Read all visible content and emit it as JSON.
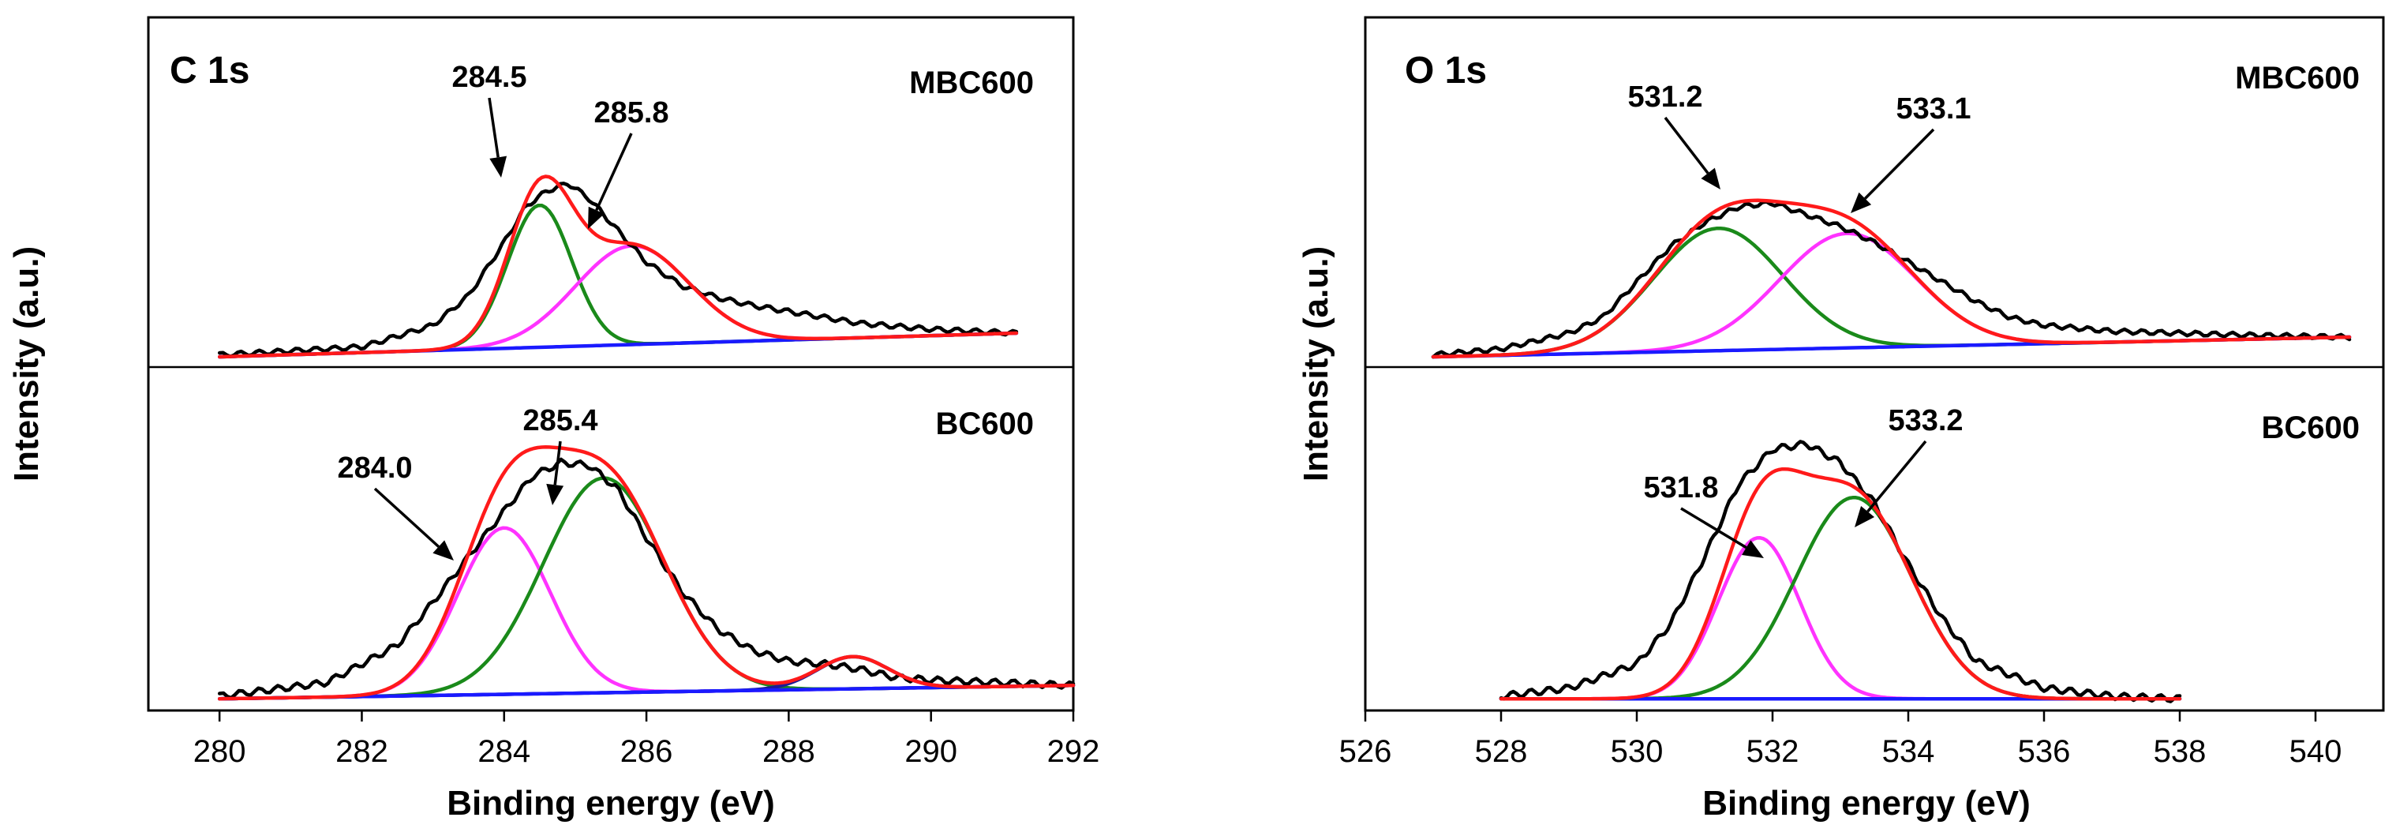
{
  "chart_data": [
    {
      "type": "line",
      "title": "C 1s",
      "xlabel": "Binding energy (eV)",
      "ylabel": "Intensity (a.u.)",
      "xlim": [
        279,
        292
      ],
      "xticks": [
        280,
        282,
        284,
        286,
        288,
        290,
        292
      ],
      "stacked_panels": [
        {
          "sample": "MBC600",
          "peaks": [
            {
              "label": "284.5",
              "center": 284.5,
              "height": 0.72,
              "width": 0.45
            },
            {
              "label": "285.8",
              "center": 285.8,
              "height": 0.5,
              "width": 0.8
            }
          ],
          "baseline": [
            0.02,
            0.14
          ],
          "raw": {
            "x": [
              280,
              282,
              283,
              283.5,
              284,
              284.3,
              284.6,
              284.9,
              285.2,
              285.5,
              286,
              286.5,
              287,
              287.5,
              288,
              288.5,
              289,
              290,
              291.2
            ],
            "y": [
              0.03,
              0.07,
              0.18,
              0.33,
              0.6,
              0.78,
              0.86,
              0.9,
              0.82,
              0.7,
              0.5,
              0.38,
              0.32,
              0.28,
              0.25,
              0.22,
              0.19,
              0.16,
              0.14
            ]
          },
          "fit_color": "#ff1a1a",
          "raw_color": "#000000",
          "colors": [
            "#1a8a1a",
            "#ff33ff"
          ],
          "baseline_color": "#1a1aff",
          "x_range": [
            280,
            291.2
          ]
        },
        {
          "sample": "BC600",
          "peaks": [
            {
              "label": "284.0",
              "center": 284.0,
              "height": 0.62,
              "width": 0.65
            },
            {
              "label": "285.4",
              "center": 285.4,
              "height": 0.8,
              "width": 0.85
            },
            {
              "label": "",
              "center": 288.9,
              "height": 0.12,
              "width": 0.5
            }
          ],
          "baseline": [
            0.02,
            0.07
          ],
          "raw": {
            "x": [
              280,
              281.5,
              282.5,
              283,
              283.5,
              284,
              284.4,
              284.8,
              285.2,
              285.6,
              286,
              286.5,
              287,
              287.5,
              288,
              288.5,
              289,
              289.5,
              290,
              291,
              292
            ],
            "y": [
              0.03,
              0.08,
              0.22,
              0.38,
              0.55,
              0.72,
              0.85,
              0.9,
              0.89,
              0.8,
              0.62,
              0.42,
              0.28,
              0.2,
              0.16,
              0.15,
              0.13,
              0.1,
              0.09,
              0.08,
              0.07
            ]
          },
          "fit_color": "#ff1a1a",
          "raw_color": "#000000",
          "colors": [
            "#ff33ff",
            "#1a8a1a",
            "#1a1a99"
          ],
          "baseline_color": "#1a1aff",
          "x_range": [
            280,
            292
          ]
        }
      ]
    },
    {
      "type": "line",
      "title": "O 1s",
      "xlabel": "Binding energy (eV)",
      "ylabel": "Intensity (a.u.)",
      "xlim": [
        526,
        541
      ],
      "xticks": [
        526,
        528,
        530,
        532,
        534,
        536,
        538,
        540
      ],
      "stacked_panels": [
        {
          "sample": "MBC600",
          "peaks": [
            {
              "label": "531.2",
              "center": 531.2,
              "height": 0.62,
              "width": 0.95
            },
            {
              "label": "533.1",
              "center": 533.1,
              "height": 0.58,
              "width": 1.0
            }
          ],
          "baseline": [
            0.02,
            0.12
          ],
          "raw": {
            "x": [
              527,
              528,
              529,
              529.5,
              530,
              530.5,
              531,
              531.5,
              532,
              532.5,
              533,
              533.5,
              534,
              534.5,
              535,
              535.5,
              536,
              537,
              538,
              539,
              540.5
            ],
            "y": [
              0.03,
              0.06,
              0.14,
              0.22,
              0.4,
              0.58,
              0.7,
              0.78,
              0.8,
              0.74,
              0.68,
              0.6,
              0.5,
              0.4,
              0.3,
              0.22,
              0.18,
              0.15,
              0.14,
              0.13,
              0.12
            ]
          },
          "fit_color": "#ff1a1a",
          "raw_color": "#000000",
          "colors": [
            "#1a8a1a",
            "#ff33ff"
          ],
          "baseline_color": "#1a1aff",
          "x_range": [
            527,
            540.5
          ]
        },
        {
          "sample": "BC600",
          "peaks": [
            {
              "label": "531.8",
              "center": 531.8,
              "height": 0.6,
              "width": 0.6
            },
            {
              "label": "533.2",
              "center": 533.2,
              "height": 0.75,
              "width": 0.85
            }
          ],
          "baseline": [
            0.02,
            0.02
          ],
          "raw": {
            "x": [
              528,
              529,
              530,
              530.5,
              531,
              531.5,
              532,
              532.5,
              533,
              533.5,
              534,
              534.5,
              535,
              536,
              537,
              538
            ],
            "y": [
              0.03,
              0.06,
              0.15,
              0.3,
              0.55,
              0.82,
              0.95,
              0.97,
              0.9,
              0.75,
              0.52,
              0.32,
              0.16,
              0.06,
              0.03,
              0.02
            ]
          },
          "fit_color": "#ff1a1a",
          "raw_color": "#000000",
          "colors": [
            "#ff33ff",
            "#1a8a1a"
          ],
          "baseline_color": "#1a1aff",
          "x_range": [
            528,
            538
          ]
        }
      ]
    }
  ]
}
